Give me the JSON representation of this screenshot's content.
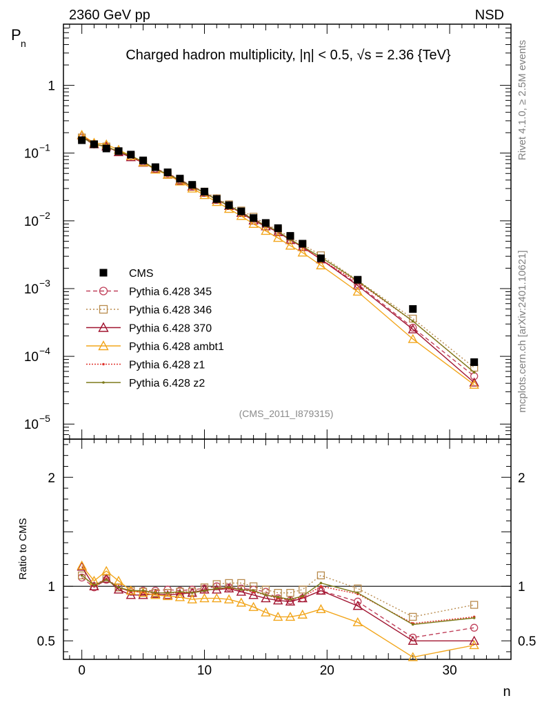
{
  "header": {
    "left": "2360 GeV pp",
    "right": "NSD"
  },
  "side_labels": {
    "rivet": "Rivet 4.1.0, ≥ 2.5M events",
    "mcplots": "mcplots.cern.ch [arXiv:2401.10621]"
  },
  "chart_data": [
    {
      "type": "line",
      "panel": "main",
      "title": "Charged hadron multiplicity, |η| < 0.5, √s = 2.36 {TeV}",
      "ylabel": "P_n",
      "yscale": "log",
      "ylim": [
        6e-06,
        8
      ],
      "xlim": [
        -1.5,
        35
      ],
      "analysis_tag": "(CMS_2011_I879315)",
      "ytick_labels": [
        "10^-5",
        "10^-4",
        "10^-3",
        "10^-2",
        "10^-1",
        "1"
      ],
      "legend_position": "middle-left",
      "x": [
        0,
        1,
        2,
        3,
        4,
        5,
        6,
        7,
        8,
        9,
        10,
        11,
        12,
        13,
        14,
        15,
        16,
        17,
        18,
        19.5,
        22.5,
        27,
        32
      ],
      "reference": {
        "name": "CMS",
        "values": [
          0.155,
          0.135,
          0.117,
          0.107,
          0.095,
          0.078,
          0.062,
          0.052,
          0.042,
          0.034,
          0.027,
          0.021,
          0.017,
          0.0138,
          0.011,
          0.0093,
          0.0078,
          0.006,
          0.0046,
          0.0028,
          0.00135,
          0.0005,
          8.2e-05
        ]
      },
      "series": [
        {
          "name": "Pythia 6.428 345",
          "color": "#c0405a",
          "marker": "circle-open",
          "dash": "6,4",
          "values": [
            0.168,
            0.134,
            0.124,
            0.106,
            0.09,
            0.075,
            0.059,
            0.0505,
            0.0405,
            0.033,
            0.026,
            0.021,
            0.0168,
            0.0135,
            0.0107,
            0.0088,
            0.0069,
            0.0052,
            0.0041,
            0.0027,
            0.00116,
            0.000265,
            5.1e-05
          ]
        },
        {
          "name": "Pythia 6.428 346",
          "color": "#b88a4c",
          "marker": "square-open",
          "dash": "2,3",
          "values": [
            0.17,
            0.135,
            0.125,
            0.106,
            0.091,
            0.074,
            0.058,
            0.049,
            0.04,
            0.032,
            0.027,
            0.0215,
            0.0175,
            0.0142,
            0.0115,
            0.009,
            0.0073,
            0.0057,
            0.0045,
            0.0031,
            0.00132,
            0.00036,
            6.8e-05
          ]
        },
        {
          "name": "Pythia 6.428 370",
          "color": "#a0132f",
          "marker": "triangle-open",
          "dash": "",
          "values": [
            0.183,
            0.135,
            0.125,
            0.103,
            0.087,
            0.072,
            0.058,
            0.048,
            0.039,
            0.032,
            0.026,
            0.0205,
            0.0166,
            0.0131,
            0.0101,
            0.0083,
            0.0068,
            0.0052,
            0.0041,
            0.0027,
            0.00111,
            0.00025,
            4.1e-05
          ]
        },
        {
          "name": "Pythia 6.428 ambt1",
          "color": "#f2a51a",
          "marker": "triangle-open",
          "dash": "",
          "values": [
            0.185,
            0.142,
            0.134,
            0.112,
            0.091,
            0.073,
            0.057,
            0.048,
            0.038,
            0.03,
            0.024,
            0.019,
            0.015,
            0.0118,
            0.009,
            0.0071,
            0.0056,
            0.0043,
            0.0034,
            0.0022,
            0.0009,
            0.00018,
            3.8e-05
          ]
        },
        {
          "name": "Pythia 6.428 z1",
          "color": "#e0302a",
          "marker": "dot",
          "dash": "2,2",
          "values": [
            0.17,
            0.137,
            0.125,
            0.105,
            0.09,
            0.074,
            0.058,
            0.049,
            0.039,
            0.032,
            0.026,
            0.0205,
            0.0166,
            0.0134,
            0.0104,
            0.0085,
            0.0069,
            0.0053,
            0.0041,
            0.0027,
            0.00125,
            0.00033,
            5.8e-05
          ]
        },
        {
          "name": "Pythia 6.428 z2",
          "color": "#7d7a1a",
          "marker": "dot",
          "dash": "",
          "values": [
            0.17,
            0.137,
            0.124,
            0.106,
            0.091,
            0.075,
            0.058,
            0.049,
            0.04,
            0.032,
            0.026,
            0.0205,
            0.0168,
            0.0134,
            0.0105,
            0.0085,
            0.007,
            0.0053,
            0.0042,
            0.0029,
            0.0013,
            0.00033,
            5.8e-05
          ]
        }
      ]
    },
    {
      "type": "line",
      "panel": "ratio",
      "ylabel": "Ratio to CMS",
      "xlabel": "n",
      "ylim": [
        0.33,
        2.35
      ],
      "xlim": [
        -1.5,
        35
      ],
      "yticks": [
        0.5,
        1,
        2
      ],
      "ytick_labels": [
        "0.5",
        "1",
        "2"
      ],
      "xticks": [
        0,
        10,
        20,
        30
      ],
      "xtick_labels": [
        "0",
        "10",
        "20",
        "30"
      ],
      "x": [
        0,
        1,
        2,
        3,
        4,
        5,
        6,
        7,
        8,
        9,
        10,
        11,
        12,
        13,
        14,
        15,
        16,
        17,
        18,
        19.5,
        22.5,
        27,
        32
      ],
      "series": [
        {
          "name": "Pythia 6.428 345",
          "color": "#c0405a",
          "marker": "circle-open",
          "dash": "6,4",
          "values": [
            1.08,
            0.99,
            1.06,
            0.99,
            0.95,
            0.96,
            0.96,
            0.97,
            0.96,
            0.97,
            0.98,
            1.0,
            0.99,
            0.98,
            0.97,
            0.95,
            0.89,
            0.87,
            0.89,
            0.96,
            0.86,
            0.53,
            0.62
          ]
        },
        {
          "name": "Pythia 6.428 346",
          "color": "#b88a4c",
          "marker": "square-open",
          "dash": "2,3",
          "values": [
            1.1,
            1.0,
            1.07,
            0.99,
            0.96,
            0.95,
            0.94,
            0.94,
            0.95,
            0.95,
            0.99,
            1.02,
            1.03,
            1.03,
            1.0,
            0.97,
            0.94,
            0.94,
            0.97,
            1.1,
            0.98,
            0.72,
            0.83
          ]
        },
        {
          "name": "Pythia 6.428 370",
          "color": "#a0132f",
          "marker": "triangle-open",
          "dash": "",
          "values": [
            1.18,
            1.0,
            1.07,
            0.97,
            0.92,
            0.92,
            0.93,
            0.92,
            0.93,
            0.94,
            0.97,
            0.97,
            0.98,
            0.95,
            0.92,
            0.89,
            0.87,
            0.86,
            0.89,
            0.96,
            0.82,
            0.5,
            0.5
          ]
        },
        {
          "name": "Pythia 6.428 ambt1",
          "color": "#f2a51a",
          "marker": "triangle-open",
          "dash": "",
          "values": [
            1.19,
            1.05,
            1.14,
            1.05,
            0.96,
            0.94,
            0.92,
            0.91,
            0.9,
            0.88,
            0.89,
            0.89,
            0.88,
            0.85,
            0.81,
            0.76,
            0.72,
            0.72,
            0.74,
            0.79,
            0.67,
            0.35,
            0.46
          ]
        },
        {
          "name": "Pythia 6.428 z1",
          "color": "#e0302a",
          "marker": "dot",
          "dash": "2,2",
          "values": [
            1.1,
            1.01,
            1.07,
            0.99,
            0.95,
            0.95,
            0.94,
            0.94,
            0.94,
            0.94,
            0.96,
            0.98,
            0.98,
            0.97,
            0.95,
            0.92,
            0.89,
            0.88,
            0.9,
            1.0,
            0.93,
            0.66,
            0.72
          ]
        },
        {
          "name": "Pythia 6.428 z2",
          "color": "#7d7a1a",
          "marker": "dot",
          "dash": "",
          "values": [
            1.1,
            1.01,
            1.06,
            0.99,
            0.96,
            0.96,
            0.94,
            0.94,
            0.95,
            0.94,
            0.96,
            0.98,
            0.99,
            0.97,
            0.96,
            0.92,
            0.9,
            0.88,
            0.91,
            1.03,
            0.94,
            0.65,
            0.71
          ]
        }
      ]
    }
  ]
}
